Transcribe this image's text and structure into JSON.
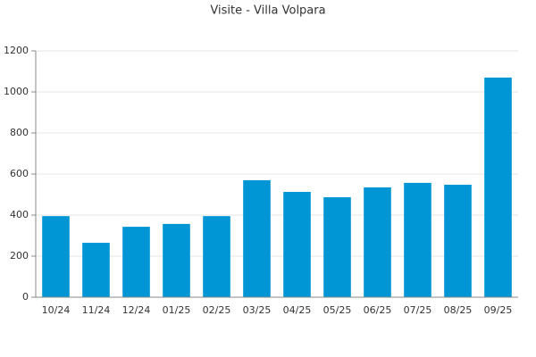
{
  "chart_data": {
    "type": "bar",
    "title": "Visite - Villa Volpara",
    "categories": [
      "10/24",
      "11/24",
      "12/24",
      "01/25",
      "02/25",
      "03/25",
      "04/25",
      "05/25",
      "06/25",
      "07/25",
      "08/25",
      "09/25"
    ],
    "values": [
      395,
      265,
      343,
      357,
      395,
      570,
      513,
      487,
      535,
      557,
      548,
      1070
    ],
    "color": "#0096d6",
    "ylim": [
      0,
      1200
    ],
    "yticks": [
      0,
      200,
      400,
      600,
      800,
      1000,
      1200
    ],
    "grid": true
  }
}
